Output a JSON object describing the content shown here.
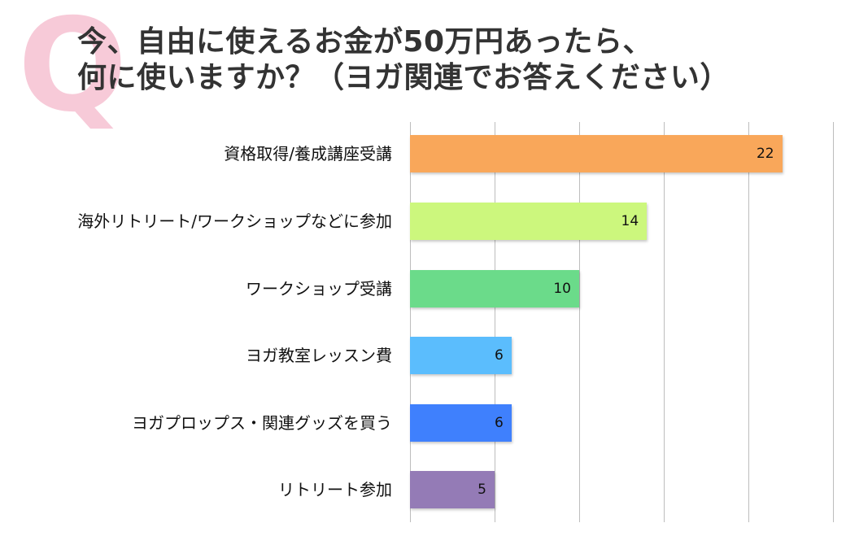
{
  "header": {
    "q_mark": "Q",
    "title_line1": "今、自由に使えるお金が50万円あったら、",
    "title_line2": "何に使いますか？（ヨガ関連でお答えください）"
  },
  "chart_data": {
    "type": "bar",
    "orientation": "horizontal",
    "title": "今、自由に使えるお金が50万円あったら、何に使いますか？（ヨガ関連でお答えください）",
    "xlabel": "",
    "ylabel": "",
    "xlim": [
      0,
      25
    ],
    "gridlines_x": [
      0,
      5,
      10,
      15,
      20,
      25
    ],
    "grid": true,
    "legend": "none",
    "data_labels": true,
    "categories": [
      "資格取得/養成講座受講",
      "海外リトリート/ワークショップなどに参加",
      "ワークショップ受講",
      "ヨガ教室レッスン費",
      "ヨガプロップス・関連グッズを買う",
      "リトリート参加"
    ],
    "values": [
      22,
      14,
      10,
      6,
      6,
      5
    ],
    "colors": [
      "#f9a75a",
      "#ccf77d",
      "#6bdb8a",
      "#5bbdfd",
      "#3f80fd",
      "#947bb6"
    ]
  },
  "bars": [
    {
      "label": "資格取得/養成講座受講",
      "value": "22",
      "color": "#f9a75a"
    },
    {
      "label": "海外リトリート/ワークショップなどに参加",
      "value": "14",
      "color": "#ccf77d"
    },
    {
      "label": "ワークショップ受講",
      "value": "10",
      "color": "#6bdb8a"
    },
    {
      "label": "ヨガ教室レッスン費",
      "value": "6",
      "color": "#5bbdfd"
    },
    {
      "label": "ヨガプロップス・関連グッズを買う",
      "value": "6",
      "color": "#3f80fd"
    },
    {
      "label": "リトリート参加",
      "value": "5",
      "color": "#947bb6"
    }
  ],
  "colors": {
    "q_mark": "#f7cad8",
    "title_text": "#333333",
    "gridline": "#bdbdbd"
  }
}
